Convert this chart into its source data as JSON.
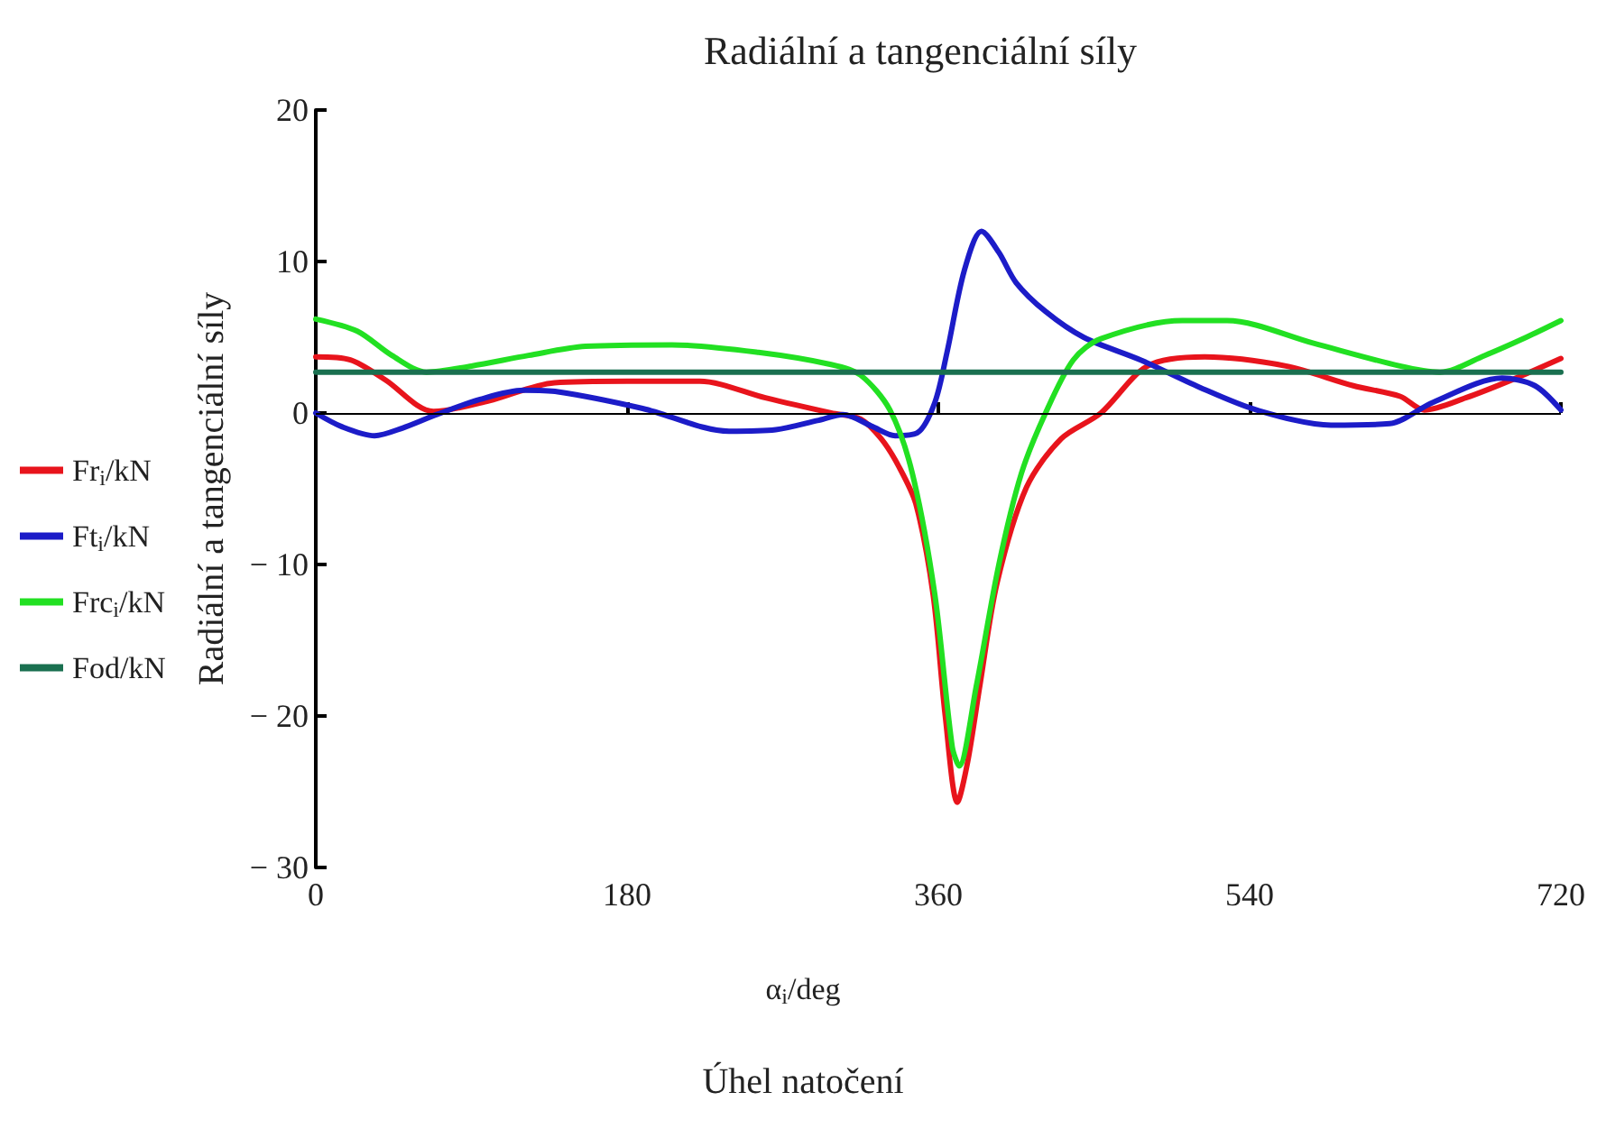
{
  "chart_data": {
    "type": "line",
    "title": "Radiální a tangenciální síly",
    "xlabel": "Úhel natočení",
    "ylabel": "Radiální a tangenciální síly",
    "annotations": [
      "α$_{i}$/deg"
    ],
    "xlim": [
      0,
      720
    ],
    "xticks": [
      0,
      180,
      360,
      540,
      720
    ],
    "ylim": [
      -30,
      20
    ],
    "yticks": [
      {
        "value": -30,
        "label": "− 30"
      },
      {
        "value": -20,
        "label": "− 20"
      },
      {
        "value": -10,
        "label": "− 10"
      },
      0,
      10,
      20
    ],
    "ref_lines": [
      {
        "axis": "y",
        "value": 0,
        "color": "#000000"
      }
    ],
    "grid": false,
    "legend": "left",
    "marker": "none",
    "line_style": "solid",
    "series": [
      {
        "name": "Fr$_{i}$/kN",
        "color": "#e8141c",
        "x": [
          0,
          20,
          40,
          68,
          100,
          138,
          180,
          222,
          260,
          298,
          315,
          327,
          337,
          347,
          357,
          364,
          371,
          377,
          384,
          394,
          411,
          431,
          454,
          481,
          514,
          561,
          600,
          627,
          641,
          665,
          694,
          720
        ],
        "values": [
          3.7,
          3.5,
          2.2,
          0.1,
          0.8,
          2.0,
          2.1,
          2.1,
          1.0,
          0.0,
          -0.4,
          -1.7,
          -3.5,
          -6,
          -12,
          -20,
          -25.7,
          -23,
          -18,
          -11.2,
          -4.9,
          -1.7,
          0,
          3.1,
          3.7,
          3.1,
          1.8,
          1.1,
          0.2,
          1.0,
          2.3,
          3.6
        ]
      },
      {
        "name": "Ft$_{i}$/kN",
        "color": "#1c1cc8",
        "x": [
          0,
          15,
          34,
          50,
          70,
          95,
          120,
          140,
          189,
          239,
          266,
          290,
          305,
          322,
          335,
          348,
          358,
          365,
          375,
          385,
          395,
          405,
          422,
          444,
          477,
          511,
          544,
          587,
          621,
          646,
          686,
          705,
          720
        ],
        "values": [
          0,
          -0.9,
          -1.5,
          -1.0,
          -0.1,
          0.9,
          1.5,
          1.4,
          0.3,
          -1.2,
          -1.1,
          -0.5,
          -0.1,
          -0.9,
          -1.5,
          -1.3,
          0.7,
          4,
          9.4,
          12,
          10.6,
          8.6,
          6.7,
          5,
          3.5,
          1.7,
          0.2,
          -0.8,
          -0.7,
          0.7,
          2.3,
          1.8,
          0.2
        ]
      },
      {
        "name": "Frc$_{i}$/kN",
        "color": "#22e022",
        "x": [
          0,
          24,
          44,
          64,
          90,
          123,
          156,
          206,
          256,
          298,
          315,
          332,
          345,
          358,
          368,
          372,
          382,
          395,
          408,
          422,
          438,
          454,
          501,
          527,
          577,
          627,
          650,
          676,
          700,
          720
        ],
        "values": [
          6.2,
          5.4,
          3.8,
          2.7,
          3.1,
          3.8,
          4.4,
          4.5,
          4.0,
          3.2,
          2.5,
          0.2,
          -4,
          -12,
          -22,
          -23.3,
          -18,
          -10,
          -4,
          0,
          3.5,
          4.9,
          6.1,
          6.1,
          4.6,
          3.1,
          2.7,
          3.8,
          5.0,
          6.1
        ]
      },
      {
        "name": "Fod/kN",
        "color": "#1a7050",
        "x": [
          0,
          720
        ],
        "values": [
          2.7,
          2.7
        ]
      }
    ]
  }
}
